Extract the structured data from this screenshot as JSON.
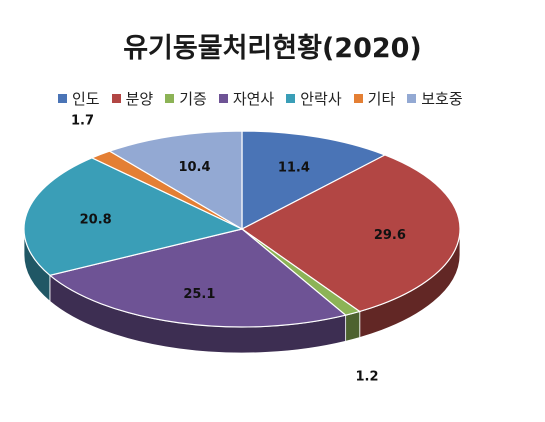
{
  "chart_data": {
    "type": "pie",
    "title": "유기동물처리현황(2020)",
    "categories": [
      "인도",
      "분양",
      "기증",
      "자연사",
      "안락사",
      "기타",
      "보호중"
    ],
    "values": [
      11.4,
      29.6,
      1.2,
      25.1,
      20.8,
      1.7,
      10.4
    ],
    "value_labels": [
      "11.4",
      "29.6",
      "1.2",
      "25.1",
      "20.8",
      "1.7",
      "10.4"
    ],
    "colors": [
      "#4a74b6",
      "#b24644",
      "#8cb356",
      "#6e5395",
      "#3a9eb7",
      "#e47f34",
      "#93a9d3"
    ],
    "legend_position": "top",
    "style": "3d-pie"
  }
}
